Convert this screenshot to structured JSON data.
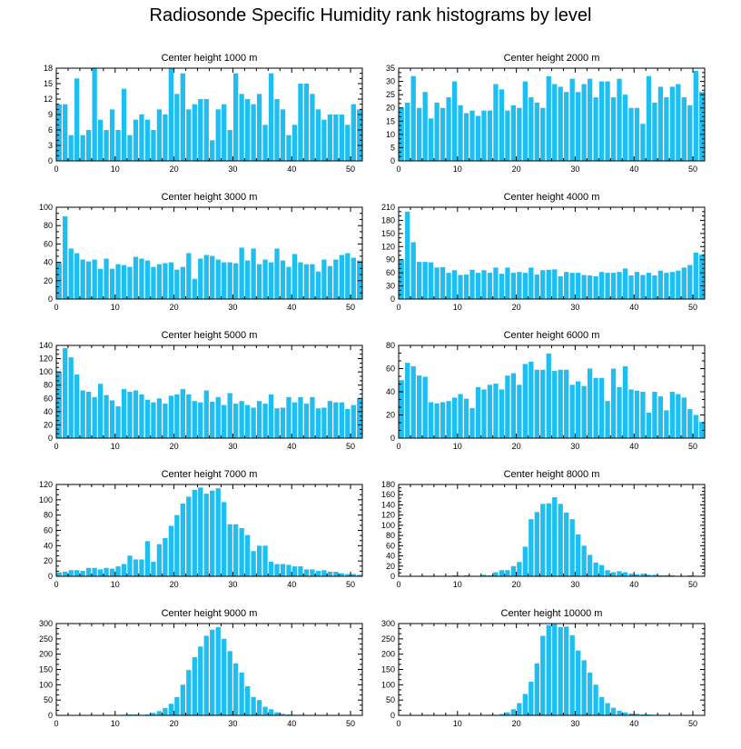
{
  "title": "Radiosonde Specific Humidity rank histograms by level",
  "colors": {
    "bar": "#1ebff0",
    "axis": "#000000",
    "background": "#ffffff"
  },
  "chart_data": [
    {
      "type": "bar",
      "title": "Center height 1000 m",
      "xlabel": "",
      "ylabel": "",
      "xlim": [
        0,
        52
      ],
      "ylim": [
        0,
        18
      ],
      "xticks": [
        0,
        10,
        20,
        30,
        40,
        50
      ],
      "yticks": [
        0,
        3,
        6,
        9,
        12,
        15,
        18
      ],
      "categories": [
        0,
        1,
        2,
        3,
        4,
        5,
        6,
        7,
        8,
        9,
        10,
        11,
        12,
        13,
        14,
        15,
        16,
        17,
        18,
        19,
        20,
        21,
        22,
        23,
        24,
        25,
        26,
        27,
        28,
        29,
        30,
        31,
        32,
        33,
        34,
        35,
        36,
        37,
        38,
        39,
        40,
        41,
        42,
        43,
        44,
        45,
        46,
        47,
        48,
        49,
        50,
        51
      ],
      "values": [
        11,
        11,
        5,
        16,
        5,
        6,
        18,
        8,
        6,
        10,
        6,
        14,
        5,
        8,
        9,
        8,
        6,
        10,
        9,
        18,
        13,
        17,
        10,
        11,
        12,
        12,
        4,
        10,
        11,
        6,
        17,
        13,
        12,
        11,
        13,
        7,
        17,
        12,
        10,
        5,
        7,
        15,
        15,
        13,
        10,
        8,
        9,
        9,
        9,
        7,
        11,
        10
      ]
    },
    {
      "type": "bar",
      "title": "Center height 2000 m",
      "xlabel": "",
      "ylabel": "",
      "xlim": [
        0,
        52
      ],
      "ylim": [
        0,
        35
      ],
      "xticks": [
        0,
        10,
        20,
        30,
        40,
        50
      ],
      "yticks": [
        0,
        5,
        10,
        15,
        20,
        25,
        30,
        35
      ],
      "categories": [
        0,
        1,
        2,
        3,
        4,
        5,
        6,
        7,
        8,
        9,
        10,
        11,
        12,
        13,
        14,
        15,
        16,
        17,
        18,
        19,
        20,
        21,
        22,
        23,
        24,
        25,
        26,
        27,
        28,
        29,
        30,
        31,
        32,
        33,
        34,
        35,
        36,
        37,
        38,
        39,
        40,
        41,
        42,
        43,
        44,
        45,
        46,
        47,
        48,
        49,
        50,
        51
      ],
      "values": [
        20,
        22,
        32,
        20,
        26,
        16,
        22,
        20,
        24,
        30,
        21,
        18,
        19,
        17,
        19,
        19,
        29,
        27,
        19,
        21,
        20,
        30,
        24,
        22,
        20,
        32,
        29,
        28,
        26,
        31,
        26,
        29,
        31,
        24,
        30,
        30,
        24,
        31,
        25,
        20,
        20,
        14,
        32,
        22,
        28,
        24,
        28,
        29,
        24,
        21,
        34,
        26
      ]
    },
    {
      "type": "bar",
      "title": "Center height 3000 m",
      "xlabel": "",
      "ylabel": "",
      "xlim": [
        0,
        52
      ],
      "ylim": [
        0,
        100
      ],
      "xticks": [
        0,
        10,
        20,
        30,
        40,
        50
      ],
      "yticks": [
        0,
        20,
        40,
        60,
        80,
        100
      ],
      "categories": [
        0,
        1,
        2,
        3,
        4,
        5,
        6,
        7,
        8,
        9,
        10,
        11,
        12,
        13,
        14,
        15,
        16,
        17,
        18,
        19,
        20,
        21,
        22,
        23,
        24,
        25,
        26,
        27,
        28,
        29,
        30,
        31,
        32,
        33,
        34,
        35,
        36,
        37,
        38,
        39,
        40,
        41,
        42,
        43,
        44,
        45,
        46,
        47,
        48,
        49,
        50,
        51
      ],
      "values": [
        40,
        90,
        55,
        50,
        43,
        41,
        43,
        33,
        44,
        33,
        38,
        37,
        35,
        46,
        44,
        42,
        35,
        38,
        39,
        40,
        32,
        35,
        50,
        22,
        44,
        48,
        47,
        43,
        40,
        40,
        39,
        56,
        42,
        55,
        38,
        43,
        40,
        55,
        42,
        35,
        49,
        40,
        38,
        38,
        30,
        43,
        36,
        43,
        48,
        50,
        45,
        42
      ]
    },
    {
      "type": "bar",
      "title": "Center height 4000 m",
      "xlabel": "",
      "ylabel": "",
      "xlim": [
        0,
        52
      ],
      "ylim": [
        0,
        210
      ],
      "xticks": [
        0,
        10,
        20,
        30,
        40,
        50
      ],
      "yticks": [
        0,
        30,
        60,
        90,
        120,
        150,
        180,
        210
      ],
      "categories": [
        0,
        1,
        2,
        3,
        4,
        5,
        6,
        7,
        8,
        9,
        10,
        11,
        12,
        13,
        14,
        15,
        16,
        17,
        18,
        19,
        20,
        21,
        22,
        23,
        24,
        25,
        26,
        27,
        28,
        29,
        30,
        31,
        32,
        33,
        34,
        35,
        36,
        37,
        38,
        39,
        40,
        41,
        42,
        43,
        44,
        45,
        46,
        47,
        48,
        49,
        50,
        51
      ],
      "values": [
        90,
        200,
        130,
        85,
        85,
        84,
        72,
        73,
        60,
        66,
        55,
        56,
        67,
        60,
        66,
        60,
        72,
        58,
        72,
        60,
        62,
        60,
        72,
        56,
        66,
        67,
        68,
        52,
        62,
        60,
        60,
        55,
        54,
        52,
        62,
        60,
        60,
        62,
        70,
        54,
        62,
        55,
        60,
        54,
        65,
        60,
        62,
        65,
        72,
        78,
        106,
        102
      ]
    },
    {
      "type": "bar",
      "title": "Center height 5000 m",
      "xlabel": "",
      "ylabel": "",
      "xlim": [
        0,
        52
      ],
      "ylim": [
        0,
        140
      ],
      "xticks": [
        0,
        10,
        20,
        30,
        40,
        50
      ],
      "yticks": [
        0,
        20,
        40,
        60,
        80,
        100,
        120,
        140
      ],
      "categories": [
        0,
        1,
        2,
        3,
        4,
        5,
        6,
        7,
        8,
        9,
        10,
        11,
        12,
        13,
        14,
        15,
        16,
        17,
        18,
        19,
        20,
        21,
        22,
        23,
        24,
        25,
        26,
        27,
        28,
        29,
        30,
        31,
        32,
        33,
        34,
        35,
        36,
        37,
        38,
        39,
        40,
        41,
        42,
        43,
        44,
        45,
        46,
        47,
        48,
        49,
        50,
        51
      ],
      "values": [
        100,
        136,
        122,
        96,
        72,
        70,
        62,
        82,
        65,
        57,
        48,
        74,
        70,
        72,
        66,
        58,
        54,
        60,
        52,
        64,
        66,
        74,
        66,
        56,
        54,
        72,
        55,
        62,
        50,
        68,
        52,
        56,
        50,
        46,
        56,
        52,
        66,
        45,
        46,
        62,
        54,
        62,
        52,
        62,
        45,
        46,
        56,
        54,
        54,
        44,
        50,
        60
      ]
    },
    {
      "type": "bar",
      "title": "Center height 6000 m",
      "xlabel": "",
      "ylabel": "",
      "xlim": [
        0,
        52
      ],
      "ylim": [
        0,
        80
      ],
      "xticks": [
        0,
        10,
        20,
        30,
        40,
        50
      ],
      "yticks": [
        0,
        20,
        40,
        60,
        80
      ],
      "categories": [
        0,
        1,
        2,
        3,
        4,
        5,
        6,
        7,
        8,
        9,
        10,
        11,
        12,
        13,
        14,
        15,
        16,
        17,
        18,
        19,
        20,
        21,
        22,
        23,
        24,
        25,
        26,
        27,
        28,
        29,
        30,
        31,
        32,
        33,
        34,
        35,
        36,
        37,
        38,
        39,
        40,
        41,
        42,
        43,
        44,
        45,
        46,
        47,
        48,
        49,
        50,
        51
      ],
      "values": [
        50,
        65,
        62,
        54,
        53,
        31,
        30,
        31,
        32,
        35,
        38,
        34,
        26,
        44,
        42,
        46,
        47,
        42,
        54,
        56,
        46,
        64,
        66,
        59,
        59,
        73,
        58,
        59,
        59,
        46,
        49,
        45,
        60,
        52,
        52,
        32,
        60,
        44,
        62,
        42,
        41,
        40,
        22,
        40,
        36,
        24,
        40,
        38,
        35,
        25,
        20,
        14
      ]
    },
    {
      "type": "bar",
      "title": "Center height 7000 m",
      "xlabel": "",
      "ylabel": "",
      "xlim": [
        0,
        52
      ],
      "ylim": [
        0,
        120
      ],
      "xticks": [
        0,
        10,
        20,
        30,
        40,
        50
      ],
      "yticks": [
        0,
        20,
        40,
        60,
        80,
        100,
        120
      ],
      "categories": [
        0,
        1,
        2,
        3,
        4,
        5,
        6,
        7,
        8,
        9,
        10,
        11,
        12,
        13,
        14,
        15,
        16,
        17,
        18,
        19,
        20,
        21,
        22,
        23,
        24,
        25,
        26,
        27,
        28,
        29,
        30,
        31,
        32,
        33,
        34,
        35,
        36,
        37,
        38,
        39,
        40,
        41,
        42,
        43,
        44,
        45,
        46,
        47,
        48,
        49,
        50,
        51
      ],
      "values": [
        5,
        6,
        8,
        8,
        7,
        11,
        11,
        9,
        11,
        10,
        13,
        16,
        27,
        22,
        22,
        46,
        19,
        42,
        50,
        66,
        80,
        95,
        104,
        113,
        116,
        108,
        112,
        115,
        97,
        68,
        68,
        63,
        54,
        33,
        40,
        40,
        19,
        16,
        16,
        15,
        13,
        13,
        9,
        9,
        7,
        8,
        6,
        6,
        4,
        3,
        3,
        2
      ]
    },
    {
      "type": "bar",
      "title": "Center height 8000 m",
      "xlabel": "",
      "ylabel": "",
      "xlim": [
        0,
        52
      ],
      "ylim": [
        0,
        180
      ],
      "xticks": [
        0,
        10,
        20,
        30,
        40,
        50
      ],
      "yticks": [
        0,
        20,
        40,
        60,
        80,
        100,
        120,
        140,
        160,
        180
      ],
      "categories": [
        0,
        1,
        2,
        3,
        4,
        5,
        6,
        7,
        8,
        9,
        10,
        11,
        12,
        13,
        14,
        15,
        16,
        17,
        18,
        19,
        20,
        21,
        22,
        23,
        24,
        25,
        26,
        27,
        28,
        29,
        30,
        31,
        32,
        33,
        34,
        35,
        36,
        37,
        38,
        39,
        40,
        41,
        42,
        43,
        44,
        45,
        46,
        47,
        48,
        49,
        50,
        51
      ],
      "values": [
        0,
        0,
        0,
        1,
        1,
        1,
        1,
        1,
        1,
        2,
        1,
        2,
        1,
        1,
        3,
        2,
        8,
        12,
        12,
        20,
        28,
        58,
        112,
        126,
        142,
        143,
        155,
        142,
        125,
        112,
        82,
        60,
        42,
        27,
        22,
        12,
        8,
        10,
        8,
        5,
        4,
        5,
        3,
        3,
        2,
        2,
        2,
        1,
        1,
        2,
        1,
        0
      ]
    },
    {
      "type": "bar",
      "title": "Center height 9000 m",
      "xlabel": "",
      "ylabel": "",
      "xlim": [
        0,
        52
      ],
      "ylim": [
        0,
        300
      ],
      "xticks": [
        0,
        10,
        20,
        30,
        40,
        50
      ],
      "yticks": [
        0,
        50,
        100,
        150,
        200,
        250,
        300
      ],
      "categories": [
        0,
        1,
        2,
        3,
        4,
        5,
        6,
        7,
        8,
        9,
        10,
        11,
        12,
        13,
        14,
        15,
        16,
        17,
        18,
        19,
        20,
        21,
        22,
        23,
        24,
        25,
        26,
        27,
        28,
        29,
        30,
        31,
        32,
        33,
        34,
        35,
        36,
        37,
        38,
        39,
        40,
        41,
        42,
        43,
        44,
        45,
        46,
        47,
        48,
        49,
        50,
        51
      ],
      "values": [
        0,
        0,
        0,
        0,
        0,
        0,
        0,
        0,
        0,
        0,
        0,
        2,
        3,
        3,
        2,
        3,
        8,
        14,
        24,
        38,
        60,
        100,
        148,
        190,
        225,
        260,
        280,
        288,
        250,
        210,
        170,
        140,
        95,
        60,
        50,
        28,
        20,
        10,
        5,
        3,
        2,
        2,
        1,
        1,
        1,
        1,
        1,
        1,
        0,
        0,
        0,
        0
      ]
    },
    {
      "type": "bar",
      "title": "Center height 10000 m",
      "xlabel": "",
      "ylabel": "",
      "xlim": [
        0,
        52
      ],
      "ylim": [
        0,
        300
      ],
      "xticks": [
        0,
        10,
        20,
        30,
        40,
        50
      ],
      "yticks": [
        0,
        50,
        100,
        150,
        200,
        250,
        300
      ],
      "categories": [
        0,
        1,
        2,
        3,
        4,
        5,
        6,
        7,
        8,
        9,
        10,
        11,
        12,
        13,
        14,
        15,
        16,
        17,
        18,
        19,
        20,
        21,
        22,
        23,
        24,
        25,
        26,
        27,
        28,
        29,
        30,
        31,
        32,
        33,
        34,
        35,
        36,
        37,
        38,
        39,
        40,
        41,
        42,
        43,
        44,
        45,
        46,
        47,
        48,
        49,
        50,
        51
      ],
      "values": [
        0,
        0,
        0,
        0,
        0,
        0,
        0,
        0,
        0,
        0,
        0,
        0,
        0,
        0,
        0,
        2,
        2,
        4,
        10,
        20,
        40,
        70,
        110,
        170,
        260,
        295,
        298,
        288,
        290,
        262,
        212,
        180,
        140,
        100,
        60,
        40,
        25,
        15,
        10,
        6,
        5,
        3,
        3,
        2,
        2,
        2,
        1,
        1,
        1,
        1,
        0,
        0
      ]
    }
  ]
}
